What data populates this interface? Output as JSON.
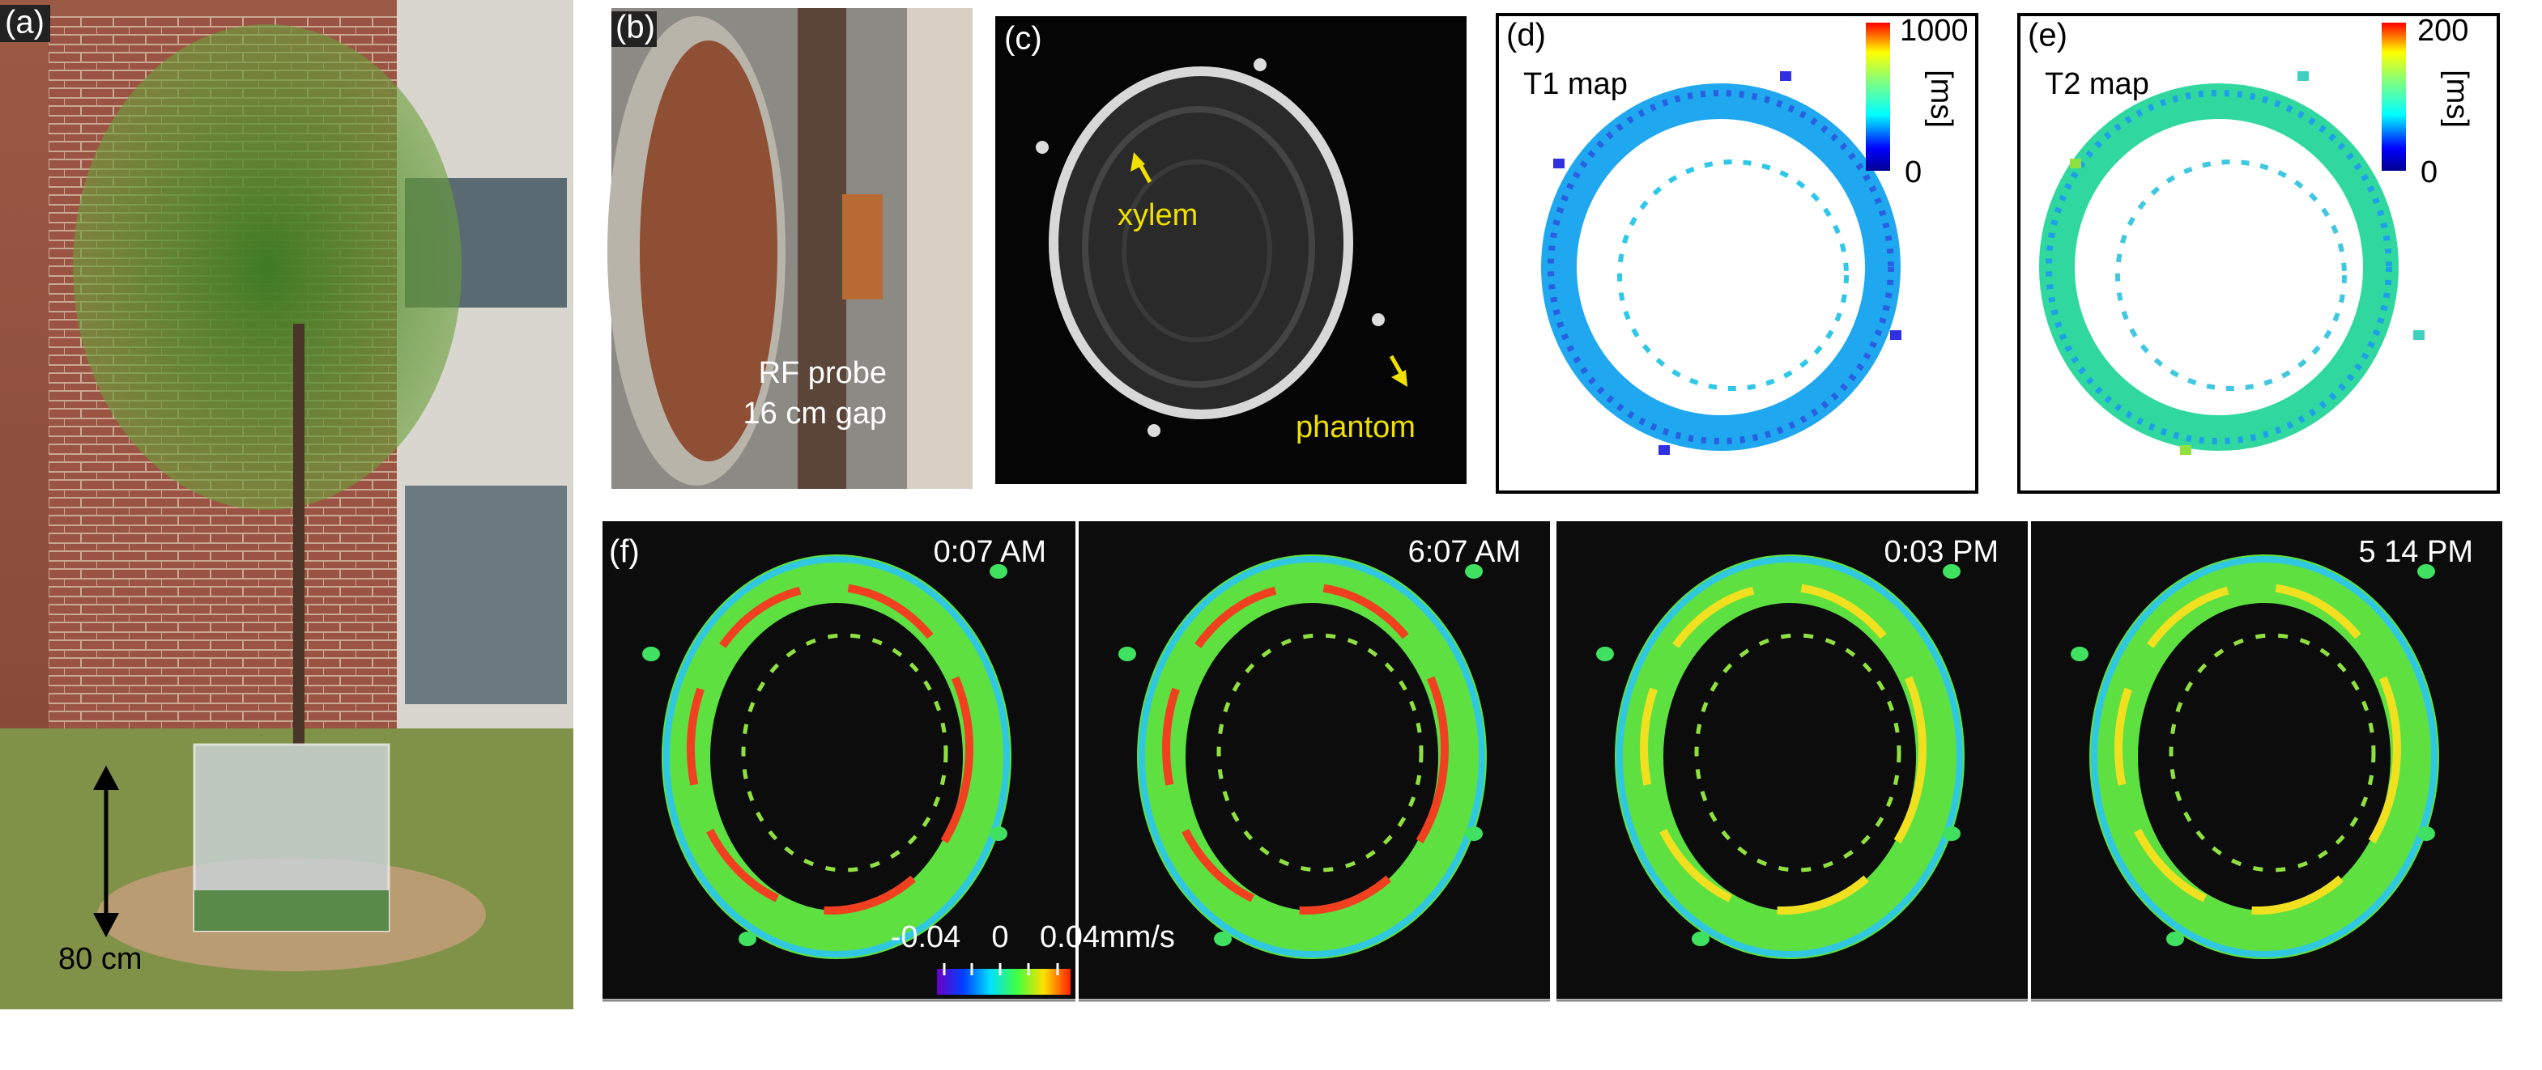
{
  "panels": {
    "a": {
      "label": "(a)",
      "scale": "80 cm"
    },
    "b": {
      "label": "(b)",
      "caption": [
        "RF probe",
        "16 cm gap"
      ]
    },
    "c": {
      "label": "(c)",
      "annotations": [
        "xylem",
        "phantom"
      ]
    },
    "d": {
      "label": "(d)",
      "title": "T1 map",
      "colorbar": {
        "max": "1000",
        "min": "0",
        "unit": "[ms]"
      }
    },
    "e": {
      "label": "(e)",
      "title": "T2 map",
      "colorbar": {
        "max": "200",
        "min": "0",
        "unit": "[ms]"
      }
    },
    "f": {
      "label": "(f)",
      "times": [
        "0:07 AM",
        "6:07 AM",
        "0:03 PM",
        "5 14 PM"
      ],
      "colorbar": {
        "ticks": [
          "-0.04",
          "0",
          "0.04mm/s"
        ]
      }
    }
  }
}
